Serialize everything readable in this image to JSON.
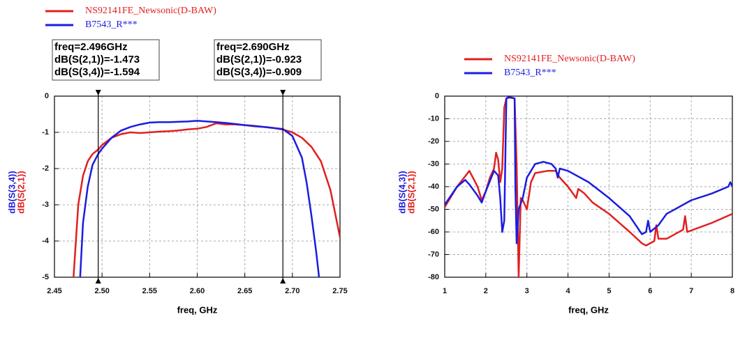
{
  "chart_data": [
    {
      "type": "line",
      "xlabel": "freq, GHz",
      "ylabels": [
        {
          "text": "dB(S(3,4))",
          "color": "#1c1ce0"
        },
        {
          "text": "dB(S(2,1))",
          "color": "#e02020"
        }
      ],
      "xlim": [
        2.45,
        2.75
      ],
      "ylim": [
        -5,
        0
      ],
      "xticks": [
        2.45,
        {
          "value": 2.5,
          "label": "2.50"
        },
        2.55,
        {
          "value": 2.6,
          "label": "2.60"
        },
        2.65,
        {
          "value": 2.7,
          "label": "2.70"
        },
        2.75
      ],
      "yticks": [
        0,
        -1,
        -2,
        -3,
        -4,
        -5
      ],
      "grid": true,
      "series": [
        {
          "name": "NS92141FE_Newsonic(D-BAW)",
          "color": "#e02020",
          "x": [
            2.47,
            2.475,
            2.48,
            2.485,
            2.49,
            2.496,
            2.5,
            2.51,
            2.52,
            2.53,
            2.54,
            2.55,
            2.56,
            2.57,
            2.58,
            2.59,
            2.6,
            2.61,
            2.62,
            2.63,
            2.64,
            2.65,
            2.66,
            2.67,
            2.68,
            2.69,
            2.7,
            2.71,
            2.72,
            2.73,
            2.74,
            2.75
          ],
          "values": [
            -5,
            -3.0,
            -2.2,
            -1.8,
            -1.6,
            -1.473,
            -1.35,
            -1.15,
            -1.05,
            -1.0,
            -1.02,
            -1.0,
            -0.98,
            -0.97,
            -0.95,
            -0.92,
            -0.9,
            -0.85,
            -0.75,
            -0.78,
            -0.78,
            -0.8,
            -0.82,
            -0.85,
            -0.88,
            -0.923,
            -1.0,
            -1.15,
            -1.4,
            -1.8,
            -2.6,
            -3.9
          ]
        },
        {
          "name": "B7543_R***",
          "color": "#1c1ce0",
          "x": [
            2.477,
            2.48,
            2.485,
            2.49,
            2.496,
            2.5,
            2.51,
            2.52,
            2.53,
            2.54,
            2.55,
            2.56,
            2.57,
            2.58,
            2.59,
            2.6,
            2.61,
            2.62,
            2.63,
            2.64,
            2.65,
            2.66,
            2.67,
            2.68,
            2.69,
            2.7,
            2.71,
            2.715,
            2.72,
            2.725,
            2.728
          ],
          "values": [
            -5,
            -3.5,
            -2.5,
            -1.9,
            -1.594,
            -1.45,
            -1.15,
            -0.95,
            -0.85,
            -0.78,
            -0.73,
            -0.72,
            -0.72,
            -0.71,
            -0.7,
            -0.68,
            -0.7,
            -0.72,
            -0.74,
            -0.77,
            -0.8,
            -0.83,
            -0.85,
            -0.88,
            -0.909,
            -1.1,
            -1.7,
            -2.4,
            -3.3,
            -4.3,
            -5
          ]
        }
      ],
      "markers": [
        {
          "x": 2.496,
          "readout": [
            "freq=2.496GHz",
            "dB(S(2,1))=-1.473",
            "dB(S(3,4))=-1.594"
          ]
        },
        {
          "x": 2.69,
          "readout": [
            "freq=2.690GHz",
            "dB(S(2,1))=-0.923",
            "dB(S(3,4))=-0.909"
          ]
        }
      ]
    },
    {
      "type": "line",
      "xlabel": "freq, GHz",
      "ylabels": [
        {
          "text": "dB(S(4,3))",
          "color": "#1c1ce0"
        },
        {
          "text": "dB(S(2,1))",
          "color": "#e02020"
        }
      ],
      "xlim": [
        1,
        8
      ],
      "ylim": [
        -80,
        0
      ],
      "xticks": [
        1,
        2,
        3,
        4,
        5,
        6,
        7,
        8
      ],
      "yticks": [
        0,
        -10,
        -20,
        -30,
        -40,
        -50,
        -60,
        -70,
        -80
      ],
      "grid": true,
      "series": [
        {
          "name": "NS92141FE_Newsonic(D-BAW)",
          "color": "#e02020",
          "x": [
            1.0,
            1.3,
            1.6,
            1.8,
            1.9,
            2.0,
            2.1,
            2.2,
            2.25,
            2.3,
            2.35,
            2.4,
            2.45,
            2.5,
            2.6,
            2.7,
            2.75,
            2.8,
            2.85,
            2.9,
            3.0,
            3.1,
            3.2,
            3.5,
            3.7,
            3.8,
            4.0,
            4.2,
            4.25,
            4.4,
            4.6,
            5.0,
            5.5,
            5.8,
            5.9,
            6.1,
            6.15,
            6.2,
            6.4,
            6.8,
            6.85,
            6.9,
            7.5,
            8.0
          ],
          "values": [
            -49,
            -40,
            -33,
            -40,
            -46,
            -42,
            -36,
            -32,
            -25,
            -28,
            -38,
            -32,
            -5,
            -1,
            -0.5,
            -1,
            -30,
            -80,
            -45,
            -46,
            -50,
            -38,
            -34,
            -33,
            -33,
            -36,
            -40,
            -45,
            -41,
            -43,
            -47,
            -52,
            -60,
            -65,
            -66,
            -64,
            -57,
            -63,
            -63,
            -59,
            -53,
            -60,
            -56,
            -52
          ]
        },
        {
          "name": "B7543_R***",
          "color": "#1c1ce0",
          "x": [
            1.0,
            1.3,
            1.5,
            1.6,
            1.8,
            1.9,
            2.0,
            2.2,
            2.3,
            2.35,
            2.4,
            2.45,
            2.5,
            2.55,
            2.7,
            2.72,
            2.75,
            2.8,
            2.9,
            3.0,
            3.2,
            3.4,
            3.6,
            3.7,
            3.75,
            3.8,
            4.0,
            4.5,
            5.0,
            5.5,
            5.8,
            5.9,
            5.95,
            6.0,
            6.2,
            6.4,
            6.5,
            7.0,
            7.5,
            7.9,
            7.95,
            8.0
          ],
          "values": [
            -48,
            -40,
            -37,
            -39,
            -44,
            -47,
            -42,
            -33,
            -35,
            -45,
            -60,
            -55,
            -1,
            -0.5,
            -1,
            -40,
            -65,
            -50,
            -45,
            -36,
            -30,
            -29,
            -30,
            -32,
            -36,
            -32,
            -33,
            -38,
            -45,
            -53,
            -61,
            -60,
            -55,
            -60,
            -57,
            -52,
            -51,
            -46,
            -43,
            -40,
            -38,
            -40
          ]
        }
      ]
    }
  ]
}
